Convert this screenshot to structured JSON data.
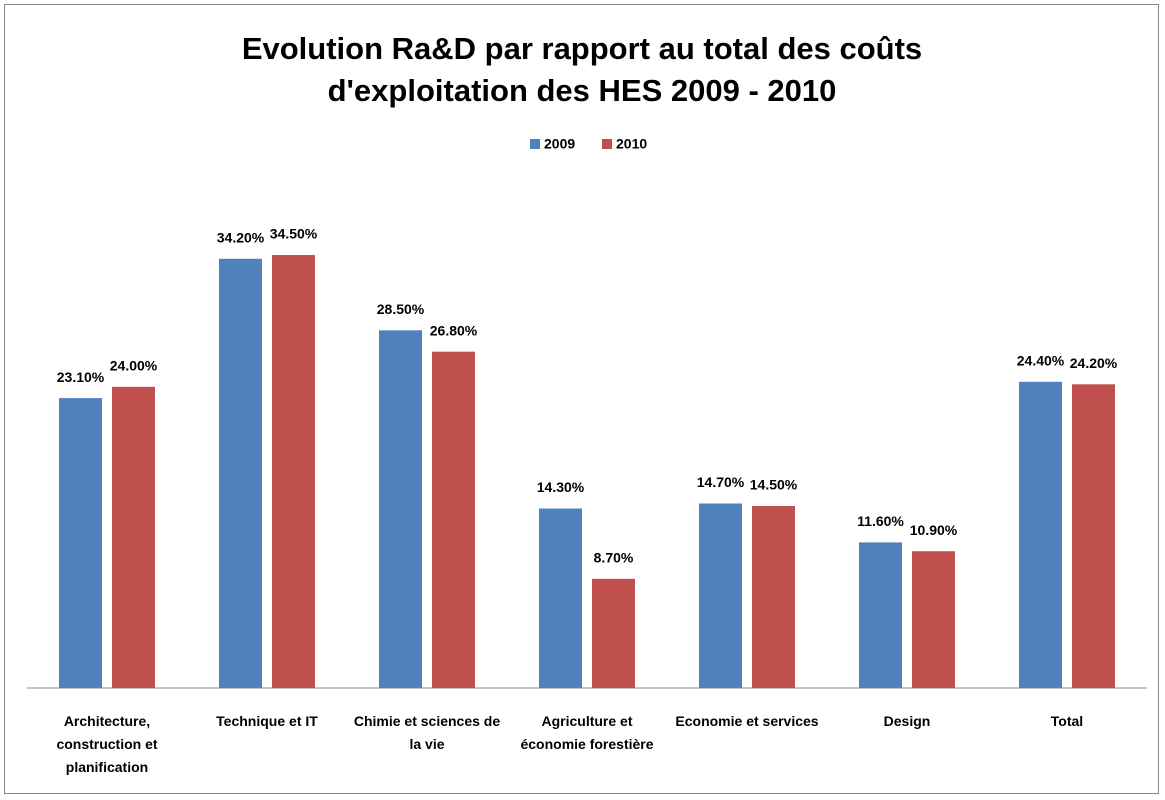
{
  "chart_data": {
    "type": "bar",
    "title": "Evolution Ra&D par rapport au total des coûts d'exploitation des HES 2009 - 2010",
    "categories": [
      "Architecture, construction et planification",
      "Technique et IT",
      "Chimie et sciences de la vie",
      "Agriculture et économie forestière",
      "Economie et services",
      "Design",
      "Total"
    ],
    "series": [
      {
        "name": "2009",
        "color": "#4f81bd",
        "values": [
          23.1,
          34.2,
          28.5,
          14.3,
          14.7,
          11.6,
          24.4
        ],
        "value_labels": [
          "23.10%",
          "34.20%",
          "28.50%",
          "14.30%",
          "14.70%",
          "11.60%",
          "24.40%"
        ]
      },
      {
        "name": "2010",
        "color": "#c0504d",
        "values": [
          24.0,
          34.5,
          26.8,
          8.7,
          14.5,
          10.9,
          24.2
        ],
        "value_labels": [
          "24.00%",
          "34.50%",
          "26.80%",
          "8.70%",
          "14.50%",
          "10.90%",
          "24.20%"
        ]
      }
    ],
    "ylim": [
      0,
      40
    ],
    "legend": "top"
  }
}
